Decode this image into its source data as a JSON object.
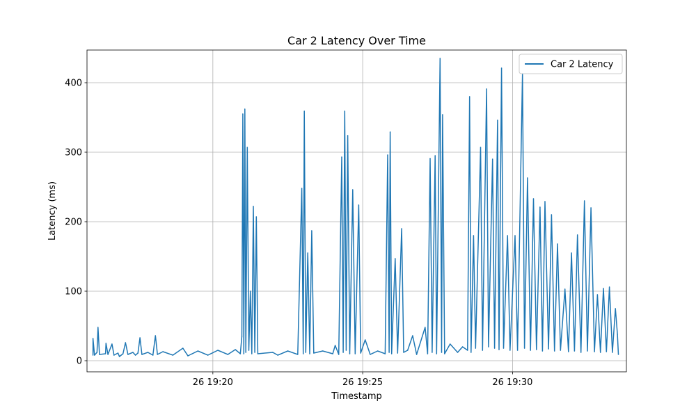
{
  "chart_data": {
    "type": "line",
    "title": "Car 2 Latency Over Time",
    "xlabel": "Timestamp",
    "ylabel": "Latency (ms)",
    "xlim": [
      "26 19:15:48",
      "26 19:33:48"
    ],
    "ylim": [
      -16,
      447
    ],
    "x_ticks": [
      {
        "label": "26 19:20",
        "value": "26 19:20:00"
      },
      {
        "label": "26 19:25",
        "value": "26 19:25:00"
      },
      {
        "label": "26 19:30",
        "value": "26 19:30:00"
      }
    ],
    "y_ticks": [
      0,
      100,
      200,
      300,
      400
    ],
    "grid": true,
    "legend": {
      "position": "top-right"
    },
    "series": [
      {
        "name": "Car 2 Latency",
        "color": "#1f77b4",
        "points": [
          [
            "26 19:16:00",
            8
          ],
          [
            "26 19:16:00",
            32
          ],
          [
            "26 19:16:03",
            8
          ],
          [
            "26 19:16:08",
            12
          ],
          [
            "26 19:16:10",
            48
          ],
          [
            "26 19:16:13",
            9
          ],
          [
            "26 19:16:25",
            10
          ],
          [
            "26 19:16:26",
            25
          ],
          [
            "26 19:16:30",
            9
          ],
          [
            "26 19:16:38",
            24
          ],
          [
            "26 19:16:42",
            8
          ],
          [
            "26 19:16:50",
            11
          ],
          [
            "26 19:16:53",
            6
          ],
          [
            "26 19:17:00",
            10
          ],
          [
            "26 19:17:05",
            26
          ],
          [
            "26 19:17:10",
            9
          ],
          [
            "26 19:17:20",
            12
          ],
          [
            "26 19:17:25",
            8
          ],
          [
            "26 19:17:30",
            11
          ],
          [
            "26 19:17:34",
            33
          ],
          [
            "26 19:17:38",
            9
          ],
          [
            "26 19:17:50",
            12
          ],
          [
            "26 19:18:00",
            8
          ],
          [
            "26 19:18:05",
            36
          ],
          [
            "26 19:18:09",
            9
          ],
          [
            "26 19:18:20",
            13
          ],
          [
            "26 19:18:40",
            8
          ],
          [
            "26 19:19:00",
            18
          ],
          [
            "26 19:19:10",
            7
          ],
          [
            "26 19:19:30",
            14
          ],
          [
            "26 19:19:50",
            8
          ],
          [
            "26 19:20:10",
            15
          ],
          [
            "26 19:20:30",
            9
          ],
          [
            "26 19:20:45",
            16
          ],
          [
            "26 19:20:55",
            10
          ],
          [
            "26 19:20:58",
            35
          ],
          [
            "26 19:21:00",
            355
          ],
          [
            "26 19:21:02",
            10
          ],
          [
            "26 19:21:04",
            362
          ],
          [
            "26 19:21:06",
            12
          ],
          [
            "26 19:21:09",
            307
          ],
          [
            "26 19:21:12",
            15
          ],
          [
            "26 19:21:15",
            100
          ],
          [
            "26 19:21:18",
            10
          ],
          [
            "26 19:21:21",
            222
          ],
          [
            "26 19:21:24",
            12
          ],
          [
            "26 19:21:27",
            207
          ],
          [
            "26 19:21:30",
            10
          ],
          [
            "26 19:22:00",
            12
          ],
          [
            "26 19:22:10",
            8
          ],
          [
            "26 19:22:30",
            14
          ],
          [
            "26 19:22:50",
            9
          ],
          [
            "26 19:22:58",
            248
          ],
          [
            "26 19:23:01",
            10
          ],
          [
            "26 19:23:03",
            359
          ],
          [
            "26 19:23:06",
            12
          ],
          [
            "26 19:23:10",
            155
          ],
          [
            "26 19:23:14",
            10
          ],
          [
            "26 19:23:18",
            187
          ],
          [
            "26 19:23:22",
            11
          ],
          [
            "26 19:23:40",
            14
          ],
          [
            "26 19:24:00",
            10
          ],
          [
            "26 19:24:05",
            22
          ],
          [
            "26 19:24:12",
            9
          ],
          [
            "26 19:24:18",
            293
          ],
          [
            "26 19:24:21",
            12
          ],
          [
            "26 19:24:24",
            359
          ],
          [
            "26 19:24:27",
            15
          ],
          [
            "26 19:24:30",
            324
          ],
          [
            "26 19:24:34",
            10
          ],
          [
            "26 19:24:40",
            246
          ],
          [
            "26 19:24:45",
            10
          ],
          [
            "26 19:24:52",
            224
          ],
          [
            "26 19:24:56",
            11
          ],
          [
            "26 19:25:05",
            30
          ],
          [
            "26 19:25:15",
            9
          ],
          [
            "26 19:25:30",
            14
          ],
          [
            "26 19:25:45",
            10
          ],
          [
            "26 19:25:50",
            296
          ],
          [
            "26 19:25:53",
            12
          ],
          [
            "26 19:25:55",
            329
          ],
          [
            "26 19:25:58",
            10
          ],
          [
            "26 19:26:05",
            147
          ],
          [
            "26 19:26:10",
            11
          ],
          [
            "26 19:26:18",
            190
          ],
          [
            "26 19:26:22",
            12
          ],
          [
            "26 19:26:30",
            15
          ],
          [
            "26 19:26:40",
            36
          ],
          [
            "26 19:26:48",
            9
          ],
          [
            "26 19:27:05",
            48
          ],
          [
            "26 19:27:10",
            10
          ],
          [
            "26 19:27:15",
            291
          ],
          [
            "26 19:27:19",
            12
          ],
          [
            "26 19:27:25",
            295
          ],
          [
            "26 19:27:28",
            10
          ],
          [
            "26 19:27:35",
            435
          ],
          [
            "26 19:27:38",
            12
          ],
          [
            "26 19:27:40",
            354
          ],
          [
            "26 19:27:44",
            10
          ],
          [
            "26 19:27:55",
            24
          ],
          [
            "26 19:28:10",
            12
          ],
          [
            "26 19:28:20",
            20
          ],
          [
            "26 19:28:30",
            15
          ],
          [
            "26 19:28:34",
            380
          ],
          [
            "26 19:28:37",
            12
          ],
          [
            "26 19:28:42",
            180
          ],
          [
            "26 19:28:46",
            18
          ],
          [
            "26 19:28:56",
            307
          ],
          [
            "26 19:29:00",
            15
          ],
          [
            "26 19:29:08",
            391
          ],
          [
            "26 19:29:12",
            20
          ],
          [
            "26 19:29:20",
            290
          ],
          [
            "26 19:29:24",
            18
          ],
          [
            "26 19:29:30",
            346
          ],
          [
            "26 19:29:33",
            16
          ],
          [
            "26 19:29:38",
            421
          ],
          [
            "26 19:29:42",
            18
          ],
          [
            "26 19:29:50",
            180
          ],
          [
            "26 19:29:55",
            15
          ],
          [
            "26 19:30:05",
            180
          ],
          [
            "26 19:30:10",
            15
          ],
          [
            "26 19:30:20",
            413
          ],
          [
            "26 19:30:24",
            18
          ],
          [
            "26 19:30:30",
            263
          ],
          [
            "26 19:30:36",
            15
          ],
          [
            "26 19:30:42",
            233
          ],
          [
            "26 19:30:48",
            16
          ],
          [
            "26 19:30:55",
            221
          ],
          [
            "26 19:31:00",
            14
          ],
          [
            "26 19:31:05",
            229
          ],
          [
            "26 19:31:12",
            17
          ],
          [
            "26 19:31:18",
            210
          ],
          [
            "26 19:31:24",
            14
          ],
          [
            "26 19:31:30",
            168
          ],
          [
            "26 19:31:36",
            15
          ],
          [
            "26 19:31:45",
            103
          ],
          [
            "26 19:31:52",
            13
          ],
          [
            "26 19:31:58",
            155
          ],
          [
            "26 19:32:04",
            14
          ],
          [
            "26 19:32:10",
            181
          ],
          [
            "26 19:32:17",
            12
          ],
          [
            "26 19:32:24",
            230
          ],
          [
            "26 19:32:30",
            14
          ],
          [
            "26 19:32:37",
            220
          ],
          [
            "26 19:32:44",
            13
          ],
          [
            "26 19:32:50",
            95
          ],
          [
            "26 19:32:56",
            12
          ],
          [
            "26 19:33:02",
            104
          ],
          [
            "26 19:33:08",
            13
          ],
          [
            "26 19:33:14",
            106
          ],
          [
            "26 19:33:20",
            12
          ],
          [
            "26 19:33:26",
            75
          ],
          [
            "26 19:33:30",
            38
          ],
          [
            "26 19:33:32",
            9
          ]
        ]
      }
    ]
  }
}
